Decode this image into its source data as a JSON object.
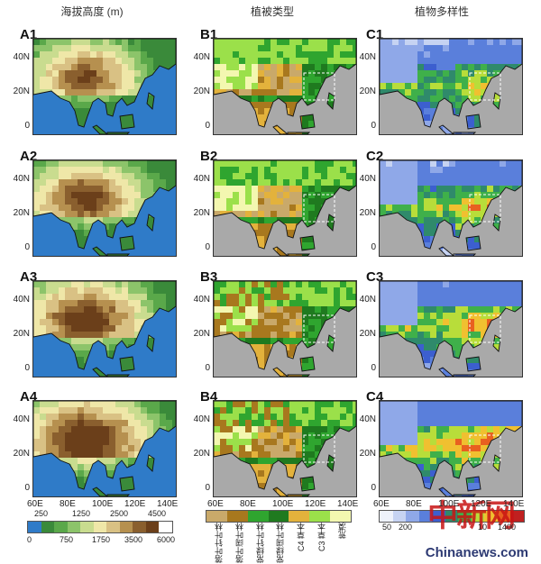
{
  "column_titles": [
    "海拔高度 (m)",
    "植被类型",
    "植物多样性"
  ],
  "panels": [
    [
      "A1",
      "B1",
      "C1"
    ],
    [
      "A2",
      "B2",
      "C2"
    ],
    [
      "A3",
      "B3",
      "C3"
    ],
    [
      "A4",
      "B4",
      "C4"
    ]
  ],
  "lat_ticks": [
    "40N",
    "20N",
    "0"
  ],
  "lon_ticks": [
    "60E",
    "80E",
    "100E",
    "120E",
    "140E"
  ],
  "elevation_colorbar": {
    "upper_labels": [
      "250",
      "1250",
      "2500",
      "4500"
    ],
    "lower_labels": [
      "0",
      "750",
      "1750",
      "3500",
      "6000"
    ],
    "colors": [
      "#2f7bc8",
      "#3a8a3a",
      "#5aa84a",
      "#8cc46a",
      "#c9dc8f",
      "#efe7a8",
      "#d9c184",
      "#b6904f",
      "#8a5f2e",
      "#6b3f1a",
      "#ffffff"
    ]
  },
  "vegetation_legend": {
    "labels": [
      "落叶针叶林",
      "落叶阔叶林",
      "常绿针叶林",
      "常绿阔叶林",
      "C4 草本",
      "C3 草本",
      "荒漠"
    ],
    "colors": [
      "#c9a96a",
      "#a8781e",
      "#2fa52f",
      "#1f7a1f",
      "#e3b23c",
      "#9be04a",
      "#f3f7b0"
    ]
  },
  "diversity_colorbar": {
    "labels": [
      "50",
      "200",
      "",
      "",
      "",
      "",
      "",
      "10",
      "1400"
    ],
    "colors": [
      "#eef2fb",
      "#c6d3f2",
      "#8fa8e8",
      "#5a7fdb",
      "#3c5fcf",
      "#2f8a6b",
      "#3fb04a",
      "#b8dd3a",
      "#f0c030",
      "#e86020",
      "#c02020"
    ]
  },
  "watermark": "Chinanews.com",
  "stamp": "中新网",
  "chart_data": {
    "type": "heatmap",
    "title": "",
    "xlabel": "",
    "ylabel": "",
    "x_ticks": [
      "60E",
      "80E",
      "100E",
      "120E",
      "140E"
    ],
    "y_ticks": [
      "40N",
      "20N",
      "0"
    ],
    "panels": [
      {
        "row": 1,
        "columns": [
          "A1 海拔高度",
          "B1 植被类型",
          "C1 植物多样性"
        ]
      },
      {
        "row": 2,
        "columns": [
          "A2 海拔高度",
          "B2 植被类型",
          "C2 植物多样性"
        ]
      },
      {
        "row": 3,
        "columns": [
          "A3 海拔高度",
          "B3 植被类型",
          "C3 植物多样性"
        ]
      },
      {
        "row": 4,
        "columns": [
          "A4 海拔高度",
          "B4 植被类型",
          "C4 植物多样性"
        ]
      }
    ],
    "elevation_levels_m": [
      0,
      250,
      750,
      1250,
      1750,
      2500,
      3500,
      4500,
      6000
    ],
    "diversity_levels": [
      50,
      200,
      1400
    ]
  }
}
